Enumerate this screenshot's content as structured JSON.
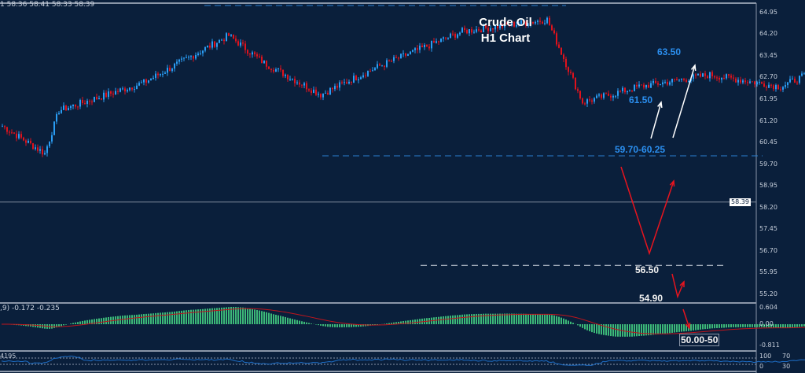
{
  "header": {
    "ohlc_readout": "1  58.36 58.41 58.33 58.39",
    "macd_readout": ",9) -0.172 -0.235",
    "osc_readout": "4195"
  },
  "chart_data": {
    "type": "candlestick",
    "title": "Crude Oil",
    "subtitle": "H1 Chart",
    "y_ticks": [
      "64.95",
      "64.20",
      "63.45",
      "62.70",
      "61.95",
      "61.20",
      "60.45",
      "59.70",
      "58.95",
      "58.20",
      "57.45",
      "56.70",
      "55.95",
      "55.20"
    ],
    "ylim": [
      55.2,
      64.95
    ],
    "last_price": "58.39",
    "price_anchors": [
      [
        0,
        61.02
      ],
      [
        6,
        60.07
      ],
      [
        8,
        61.56
      ],
      [
        20,
        62.52
      ],
      [
        32,
        64.15
      ],
      [
        37,
        63.2
      ],
      [
        45,
        62.11
      ],
      [
        53,
        63.06
      ],
      [
        65,
        64.29
      ],
      [
        77,
        64.7
      ],
      [
        82,
        61.84
      ],
      [
        90,
        62.38
      ],
      [
        100,
        62.79
      ],
      [
        110,
        62.38
      ],
      [
        115,
        62.93
      ],
      [
        125,
        63.2
      ],
      [
        132,
        61.84
      ],
      [
        143,
        61.29
      ],
      [
        157,
        60.07
      ],
      [
        163,
        59.8
      ],
      [
        168,
        58.03
      ],
      [
        178,
        57.89
      ],
      [
        182,
        56.39
      ],
      [
        185,
        58.57
      ],
      [
        192,
        59.52
      ],
      [
        200,
        58.71
      ],
      [
        205,
        58.3
      ],
      [
        207,
        55.85
      ],
      [
        212,
        56.12
      ],
      [
        215,
        57.34
      ],
      [
        220,
        56.66
      ],
      [
        230,
        58.16
      ],
      [
        237,
        59.52
      ],
      [
        247,
        59.8
      ],
      [
        255,
        57.76
      ],
      [
        262,
        58.39
      ]
    ],
    "levels": [
      {
        "price": 59.99,
        "style": "dashed"
      },
      {
        "price": 56.2,
        "style": "dashed"
      }
    ],
    "annotations": {
      "t3": "63.50",
      "t2": "61.50",
      "zone": "59.70-60.25",
      "s1": "56.50",
      "s2": "54.90",
      "s3": "50.00-50"
    },
    "macd_ticks": [
      "0.604",
      "0.00",
      "-0.811"
    ],
    "osc_ticks": [
      "100",
      "70",
      "30",
      "0"
    ],
    "colors": {
      "bull": "#2a9df4",
      "bear": "#e0121c",
      "background": "#0a1f3b",
      "histogram": "#3cb878",
      "signal": "#c0151c",
      "oscillator": "#1e6fc8",
      "target_text": "#2b8ff0"
    }
  }
}
